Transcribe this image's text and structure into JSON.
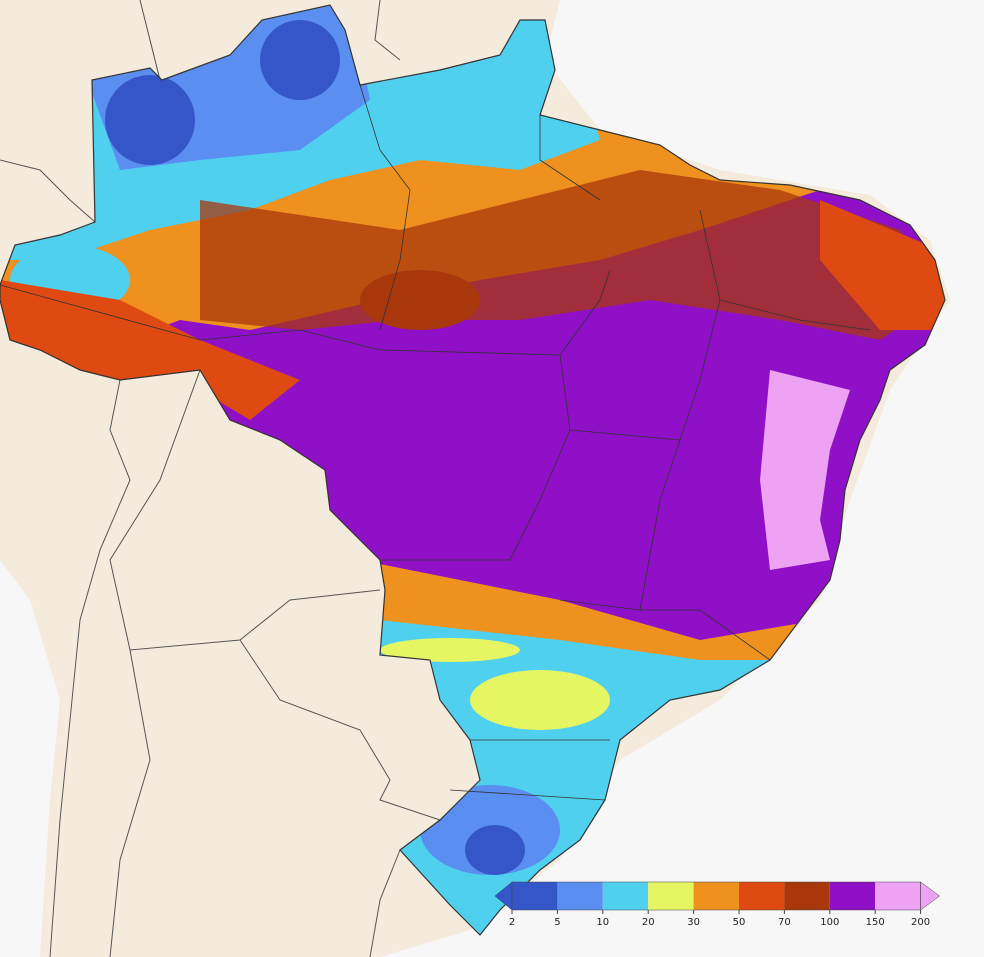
{
  "legend": {
    "ticks": [
      2,
      5,
      10,
      20,
      30,
      50,
      70,
      100,
      150,
      200
    ],
    "colors": [
      "#3556c8",
      "#5a8ef0",
      "#4fd0ef",
      "#e6f562",
      "#ef911e",
      "#de4a12",
      "#a8380c",
      "#8f10c6",
      "#eea2f4"
    ],
    "under_color": "#3556c8",
    "over_color": "#eea2f4"
  }
}
